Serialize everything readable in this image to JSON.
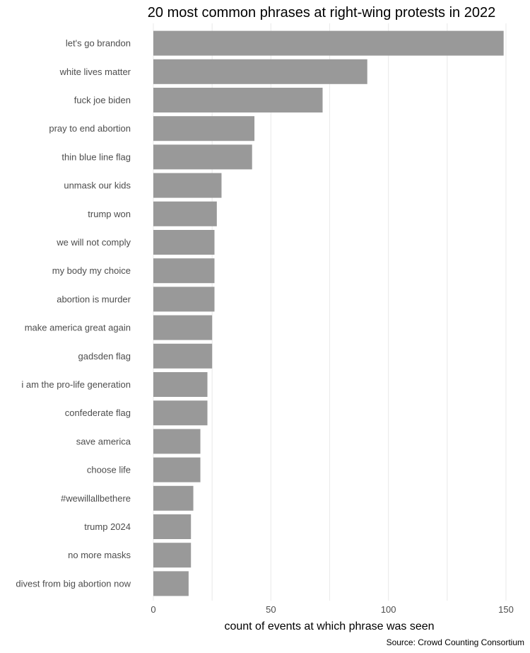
{
  "chart_data": {
    "type": "bar",
    "orientation": "horizontal",
    "title": "20 most common phrases at right-wing protests in 2022",
    "xlabel": "count of events at which phrase was seen",
    "ylabel": "",
    "caption": "Source: Crowd Counting Consortium",
    "xlim": [
      0,
      150
    ],
    "xticks": [
      0,
      50,
      100,
      150
    ],
    "grid": "vertical",
    "bar_color": "#999999",
    "categories": [
      "let's go brandon",
      "white lives matter",
      "fuck joe biden",
      "pray to end abortion",
      "thin blue line flag",
      "unmask our kids",
      "trump won",
      "we will not comply",
      "my body my choice",
      "abortion is murder",
      "make america great again",
      "gadsden flag",
      "i am the pro-life generation",
      "confederate flag",
      "save america",
      "choose life",
      "#wewillallbethere",
      "trump 2024",
      "no more masks",
      "divest from big abortion now"
    ],
    "values": [
      149,
      91,
      72,
      43,
      42,
      29,
      27,
      26,
      26,
      26,
      25,
      25,
      23,
      23,
      20,
      20,
      17,
      16,
      16,
      15
    ]
  }
}
